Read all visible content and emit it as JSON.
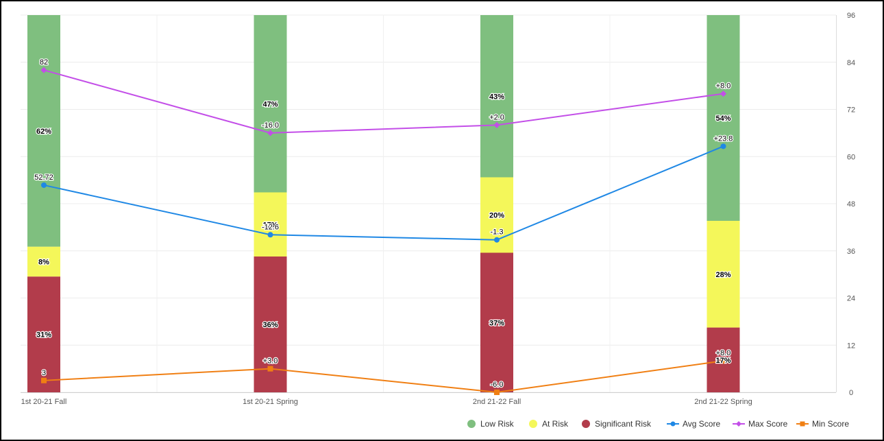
{
  "chart_data": {
    "type": "bar",
    "stacked": true,
    "categories": [
      "1st 20-21 Fall",
      "1st 20-21 Spring",
      "2nd 21-22 Fall",
      "2nd 21-22 Spring"
    ],
    "bar_series": [
      {
        "name": "Low Risk",
        "color": "#7fbf7f",
        "percent_values": [
          62,
          47,
          43,
          54
        ],
        "labels": [
          "62%",
          "47%",
          "43%",
          "54%"
        ]
      },
      {
        "name": "At Risk",
        "color": "#f4f75a",
        "percent_values": [
          8,
          17,
          20,
          28
        ],
        "labels": [
          "8%",
          "17%",
          "20%",
          "28%"
        ]
      },
      {
        "name": "Significant Risk",
        "color": "#b23c4b",
        "percent_values": [
          31,
          36,
          37,
          17
        ],
        "labels": [
          "31%",
          "36%",
          "37%",
          "17%"
        ]
      }
    ],
    "line_series": [
      {
        "name": "Avg Score",
        "color": "#1f88e5",
        "marker": "circle",
        "values": [
          52.72,
          40.1,
          38.8,
          62.6
        ],
        "labels": [
          "52.72",
          "-12.6",
          "-1.3",
          "+23.8"
        ]
      },
      {
        "name": "Max Score",
        "color": "#c34ee8",
        "marker": "diamond",
        "values": [
          82,
          66,
          68,
          76
        ],
        "labels": [
          "82",
          "-16.0",
          "+2.0",
          "+8.0"
        ]
      },
      {
        "name": "Min Score",
        "color": "#f07f13",
        "marker": "square",
        "values": [
          3,
          6,
          0,
          8
        ],
        "labels": [
          "3",
          "+3.0",
          "-6.0",
          "+8.0"
        ]
      }
    ],
    "y_axis": {
      "position": "right",
      "range": [
        0,
        96
      ],
      "ticks": [
        "0",
        "12",
        "24",
        "36",
        "48",
        "60",
        "72",
        "84",
        "96"
      ]
    },
    "grid": true,
    "legend": {
      "position": "bottom-right",
      "items": [
        "Low Risk",
        "At Risk",
        "Significant Risk",
        "Avg Score",
        "Max Score",
        "Min Score"
      ]
    }
  }
}
